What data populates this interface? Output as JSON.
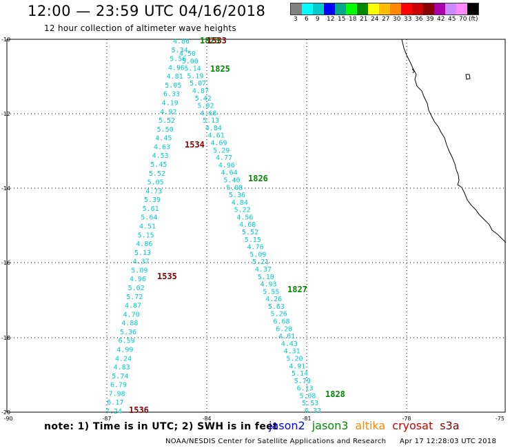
{
  "title": "12:00 — 23:59 UTC 04/16/2018",
  "subtitle": "12 hour collection of altimeter wave heights",
  "legend": {
    "colors": [
      "#808080",
      "#00ffff",
      "#00cccc",
      "#0000ff",
      "#00aa88",
      "#00ff00",
      "#008800",
      "#ffff00",
      "#ffbb00",
      "#ff8800",
      "#ff0000",
      "#cc0000",
      "#880000",
      "#aa00aa",
      "#cc88ff",
      "#ff88ff",
      "#000000"
    ],
    "labels": [
      "3",
      "6",
      "9",
      "12",
      "15",
      "18",
      "21",
      "24",
      "27",
      "30",
      "33",
      "36",
      "39",
      "42",
      "45",
      "70",
      "(ft)"
    ]
  },
  "axes": {
    "lat_labels": [
      "-10",
      "-12",
      "-14",
      "-16",
      "-18",
      "-20"
    ],
    "lon_labels": [
      "-90",
      "-87",
      "-84",
      "-81",
      "-78",
      "-75"
    ]
  },
  "tracks": {
    "west_track": [
      "4.86",
      "5.34",
      "5.56",
      "4.96",
      "4.81",
      "5.05",
      "6.33",
      "4.19",
      "4.92",
      "5.52",
      "5.50",
      "4.45",
      "4.63",
      "4.53",
      "5.45",
      "5.52",
      "5.05",
      "4.73",
      "5.39",
      "5.61",
      "5.64",
      "4.51",
      "5.15",
      "4.86",
      "5.13",
      "4.37",
      "5.09",
      "4.96",
      "5.02",
      "5.72",
      "4.87",
      "4.70",
      "4.88",
      "5.36",
      "6.59",
      "4.99",
      "4.24",
      "4.83",
      "5.74",
      "6.79",
      "7.98",
      "6.17",
      "7.24"
    ],
    "east_track": [
      "4.50",
      "5.00",
      "5.14",
      "5.19",
      "5.07",
      "4.87",
      "5.42",
      "5.02",
      "4.68",
      "5.13",
      "4.84",
      "4.61",
      "4.69",
      "5.29",
      "4.77",
      "4.96",
      "4.64",
      "5.40",
      "5.08",
      "5.36",
      "4.84",
      "5.22",
      "4.56",
      "4.68",
      "5.52",
      "5.15",
      "4.76",
      "5.09",
      "5.21",
      "4.37",
      "5.10",
      "4.93",
      "5.55",
      "4.26",
      "5.63",
      "5.26",
      "6.68",
      "6.28",
      "4.61",
      "4.43",
      "4.31",
      "5.20",
      "4.91",
      "5.14",
      "5.79",
      "6.13",
      "5.08",
      "5.53",
      "6.33"
    ]
  },
  "time_labels": {
    "west": [
      {
        "text": "1534",
        "color": "#880000"
      },
      {
        "text": "1535",
        "color": "#880000"
      },
      {
        "text": "1536",
        "color": "#880000"
      }
    ],
    "east": [
      {
        "text": "1823",
        "color": "#008800"
      },
      {
        "text": "1825",
        "color": "#008800"
      },
      {
        "text": "1826",
        "color": "#008800"
      },
      {
        "text": "1827",
        "color": "#008800"
      },
      {
        "text": "1828",
        "color": "#008800"
      }
    ],
    "top_overlap": {
      "text": "1533",
      "color": "#880000"
    }
  },
  "note": "note:  1) Time is in UTC;  2) SWH is in feet",
  "satellites": [
    {
      "name": "jason2",
      "color": "#0000ff"
    },
    {
      "name": "jason3",
      "color": "#008800"
    },
    {
      "name": "altika",
      "color": "#ff8800"
    },
    {
      "name": "cryosat",
      "color": "#cc0000"
    },
    {
      "name": "s3a",
      "color": "#880000"
    }
  ],
  "footer": "NOAA/NESDIS Center for Satellite Applications and Research",
  "footer_time": "Apr 17 12:28:03 UTC 2018"
}
